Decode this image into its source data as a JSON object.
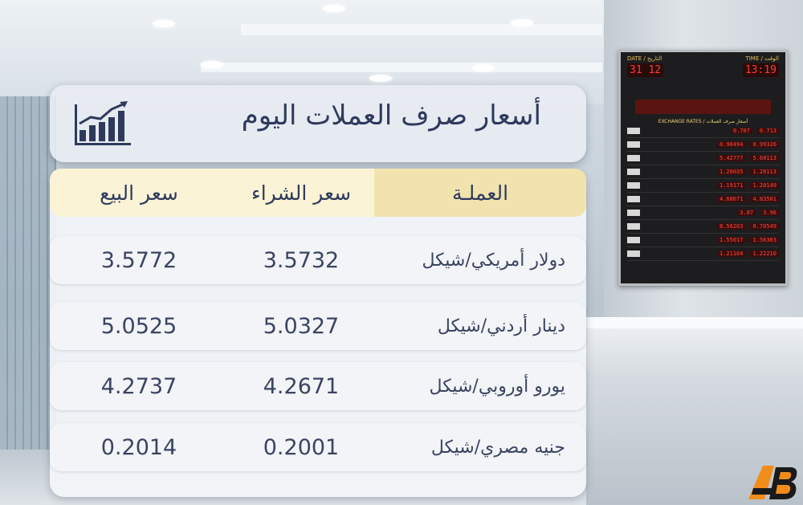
{
  "title": "أسعار صرف العملات اليوم",
  "columns": {
    "currency": "العملـة",
    "buy": "سعر الشراء",
    "sell": "سعر البيع"
  },
  "rows": [
    {
      "currency": "دولار أمريكي/شيكل",
      "buy": "3.5732",
      "sell": "3.5772"
    },
    {
      "currency": "دينار أردني/شيكل",
      "buy": "5.0327",
      "sell": "5.0525"
    },
    {
      "currency": "يورو أوروبي/شيكل",
      "buy": "4.2671",
      "sell": "4.2737"
    },
    {
      "currency": "جنيه مصري/شيكل",
      "buy": "0.2001",
      "sell": "0.2014"
    }
  ],
  "board": {
    "date_label": "DATE / التاريخ",
    "time_label": "TIME / الوقت",
    "date_digits": "31 12",
    "time_digits": "13:19",
    "title": "EXCHANGE RATES / أسعار صرف العملات",
    "rows": [
      [
        "0.707",
        "0.713"
      ],
      [
        "0.98494",
        "0.99326"
      ],
      [
        "5.42777",
        "5.60113"
      ],
      [
        "1.20035",
        "1.20113"
      ],
      [
        "1.19171",
        "1.20149"
      ],
      [
        "4.68671",
        "4.83501"
      ],
      [
        "3.87",
        "3.96"
      ],
      [
        "8.56203",
        "8.70549"
      ],
      [
        "1.55017",
        "1.56303"
      ],
      [
        "1.21104",
        "1.22210"
      ]
    ]
  },
  "logo_text": "AB",
  "colors": {
    "title_text": "#2e3a5c",
    "header_currency_bg": "#f2e3ae",
    "header_bg": "#fbf3d6",
    "row_bg": "#f2f4f8",
    "logo_orange": "#f28c1a"
  },
  "icons": [
    "chart-growth-icon"
  ]
}
